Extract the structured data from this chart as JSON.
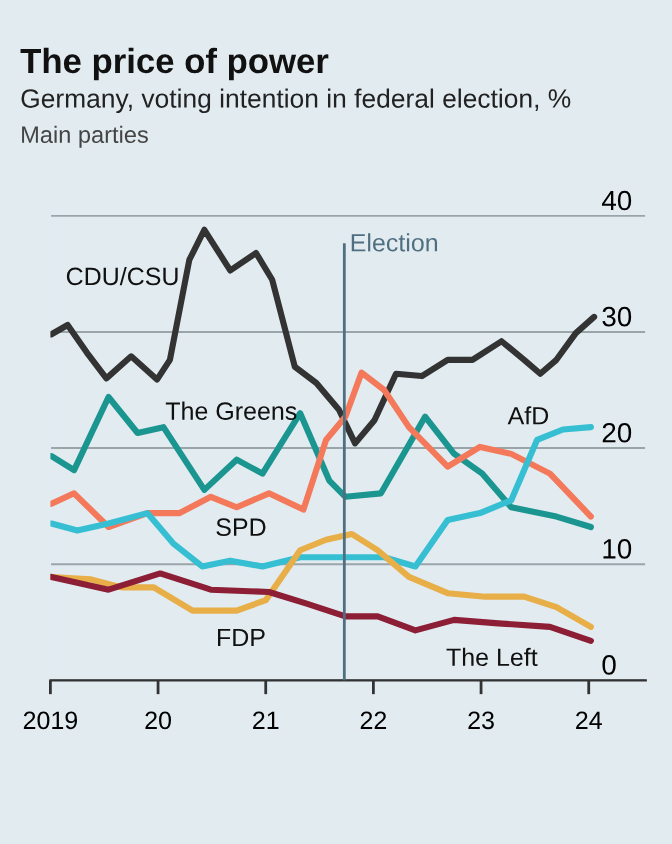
{
  "chart_data": {
    "type": "line",
    "title": "The price of power",
    "subtitle": "Germany, voting intention in federal election, %",
    "annotations": [
      "Main parties"
    ],
    "xlim": [
      2019.0,
      2024.53
    ],
    "ylim": [
      0,
      41
    ],
    "xticks": [
      2019,
      {
        "value": 2020,
        "label": "20"
      },
      {
        "value": 2021,
        "label": "21"
      },
      {
        "value": 2022,
        "label": "22"
      },
      {
        "value": 2023,
        "label": "23"
      },
      {
        "value": 2024,
        "label": "24"
      }
    ],
    "yticks": [
      0,
      10,
      20,
      30,
      40
    ],
    "grid": "y",
    "legend": false,
    "marker": "none",
    "line_style": "solid",
    "ref_lines": [
      {
        "axis": "x",
        "value": 2021.73,
        "label": "Election",
        "color": "#4f6f80"
      }
    ],
    "series": [
      {
        "name": "CDU/CSU",
        "color": "#333333",
        "x": [
          2019.01,
          2019.16,
          2019.34,
          2019.52,
          2019.75,
          2019.99,
          2020.11,
          2020.29,
          2020.43,
          2020.67,
          2020.91,
          2021.06,
          2021.27,
          2021.47,
          2021.68,
          2021.83,
          2022.01,
          2022.21,
          2022.45,
          2022.69,
          2022.92,
          2023.19,
          2023.4,
          2023.55,
          2023.7,
          2023.88,
          2024.05
        ],
        "values": [
          29.8,
          30.6,
          28.2,
          26.0,
          27.9,
          25.9,
          27.6,
          36.2,
          38.8,
          35.3,
          36.8,
          34.5,
          27.0,
          25.6,
          23.3,
          20.4,
          22.4,
          26.4,
          26.2,
          27.6,
          27.6,
          29.2,
          27.6,
          26.4,
          27.6,
          29.9,
          31.3
        ]
      },
      {
        "name": "The Greens",
        "color": "#1b9590",
        "x": [
          2019.01,
          2019.22,
          2019.54,
          2019.81,
          2020.05,
          2020.43,
          2020.73,
          2020.97,
          2021.32,
          2021.59,
          2021.74,
          2022.07,
          2022.48,
          2022.75,
          2023.01,
          2023.28,
          2023.7,
          2024.02
        ],
        "values": [
          19.3,
          18.1,
          24.4,
          21.3,
          21.8,
          16.4,
          19.0,
          17.8,
          23.0,
          17.2,
          15.8,
          16.1,
          22.7,
          19.5,
          17.8,
          14.9,
          14.1,
          13.2
        ]
      },
      {
        "name": "SPD",
        "color": "#f4795b",
        "x": [
          2019.01,
          2019.22,
          2019.54,
          2019.9,
          2020.2,
          2020.49,
          2020.73,
          2021.03,
          2021.35,
          2021.56,
          2021.74,
          2021.89,
          2022.1,
          2022.33,
          2022.69,
          2022.99,
          2023.28,
          2023.64,
          2024.02
        ],
        "values": [
          15.2,
          16.1,
          13.2,
          14.4,
          14.4,
          15.8,
          14.9,
          16.1,
          14.7,
          20.7,
          22.7,
          26.5,
          25.0,
          21.8,
          18.4,
          20.1,
          19.5,
          17.8,
          14.1
        ]
      },
      {
        "name": "AfD",
        "color": "#36bfd2",
        "x": [
          2019.01,
          2019.25,
          2019.54,
          2019.9,
          2020.14,
          2020.41,
          2020.67,
          2020.97,
          2021.32,
          2021.74,
          2022.1,
          2022.39,
          2022.69,
          2022.99,
          2023.28,
          2023.52,
          2023.76,
          2024.02
        ],
        "values": [
          13.5,
          12.9,
          13.5,
          14.4,
          11.8,
          9.8,
          10.3,
          9.8,
          10.6,
          10.6,
          10.6,
          9.8,
          13.8,
          14.4,
          15.5,
          20.7,
          21.6,
          21.8
        ]
      },
      {
        "name": "FDP",
        "color": "#e8ae47",
        "x": [
          2019.01,
          2019.37,
          2019.66,
          2019.96,
          2020.32,
          2020.73,
          2021.0,
          2021.32,
          2021.56,
          2021.8,
          2022.04,
          2022.33,
          2022.69,
          2023.04,
          2023.4,
          2023.7,
          2024.02
        ],
        "values": [
          8.9,
          8.7,
          8.0,
          8.0,
          6.0,
          6.0,
          6.9,
          11.2,
          12.1,
          12.6,
          11.2,
          8.9,
          7.5,
          7.2,
          7.2,
          6.3,
          4.6
        ]
      },
      {
        "name": "The Left",
        "color": "#8c1f35",
        "x": [
          2019.01,
          2019.54,
          2020.02,
          2020.49,
          2021.03,
          2021.38,
          2021.74,
          2022.04,
          2022.39,
          2022.75,
          2023.16,
          2023.64,
          2024.02
        ],
        "values": [
          8.9,
          7.8,
          9.2,
          7.8,
          7.6,
          6.6,
          5.5,
          5.5,
          4.3,
          5.2,
          4.9,
          4.6,
          3.4
        ]
      }
    ]
  }
}
